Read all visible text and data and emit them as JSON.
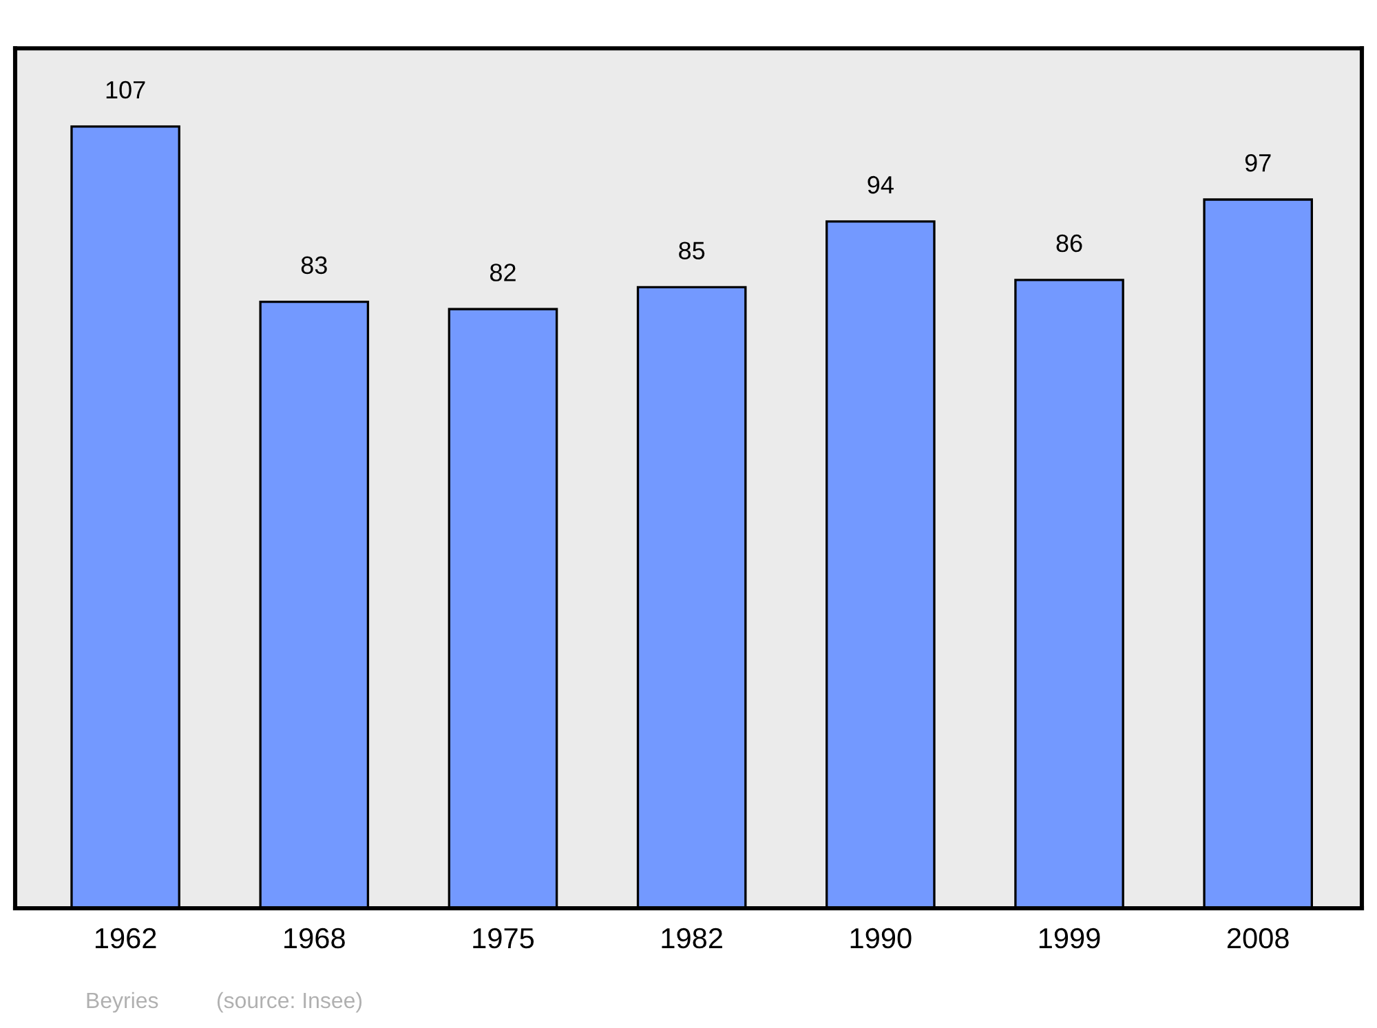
{
  "chart_data": {
    "type": "bar",
    "categories": [
      "1962",
      "1968",
      "1975",
      "1982",
      "1990",
      "1999",
      "2008"
    ],
    "values": [
      107,
      83,
      82,
      85,
      94,
      86,
      97
    ],
    "color": "#7399ff",
    "data_labels": true,
    "grid": false,
    "legend": false,
    "tick_labels": "x",
    "annotations": [
      "Beyries",
      "(source: Insee)"
    ]
  }
}
